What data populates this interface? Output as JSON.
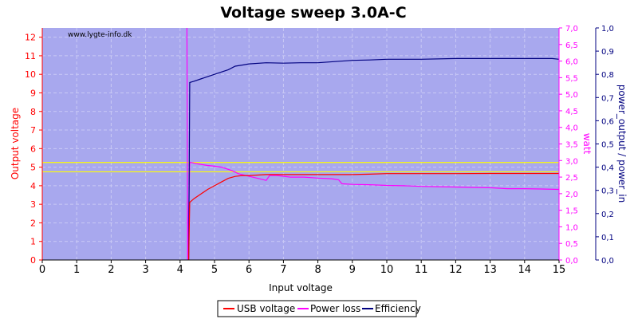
{
  "chart_data": {
    "type": "line",
    "title": "Voltage sweep 3.0A-C",
    "watermark": "www.lygte-info.dk",
    "xlabel": "Input voltage",
    "ylabel_left": "Output voltage",
    "ylabel_right1": "watt",
    "ylabel_right2": "power_output / power_in",
    "xlim": [
      0,
      15
    ],
    "ylim_left": [
      0,
      12.5
    ],
    "ylim_right1": [
      0,
      7.0
    ],
    "ylim_right2": [
      0,
      1.0
    ],
    "x_ticks": [
      "0",
      "1",
      "2",
      "3",
      "4",
      "5",
      "6",
      "7",
      "8",
      "9",
      "10",
      "11",
      "12",
      "13",
      "14",
      "15"
    ],
    "y_left_ticks": [
      "0",
      "1",
      "2",
      "3",
      "4",
      "5",
      "6",
      "7",
      "8",
      "9",
      "10",
      "11",
      "12"
    ],
    "y_right1_ticks": [
      "0,0",
      "0,5",
      "1,0",
      "1,5",
      "2,0",
      "2,5",
      "3,0",
      "3,5",
      "4,0",
      "4,5",
      "5,0",
      "5,5",
      "6,0",
      "6,5",
      "7,0"
    ],
    "y_right2_ticks": [
      "0,0",
      "0,1",
      "0,2",
      "0,3",
      "0,4",
      "0,5",
      "0,6",
      "0,7",
      "0,8",
      "0,9",
      "1,0"
    ],
    "reference_lines_left": [
      4.75,
      5.25
    ],
    "grid": true,
    "legend_position": "bottom-center",
    "colors": {
      "plot_bg": "#a8a8ee",
      "usb": "#ff0000",
      "loss": "#ff00ff",
      "eff": "#000080",
      "ref": "#ffff00",
      "left_axis": "#ff0000",
      "right1_axis": "#ff00ff",
      "right2_axis": "#000080"
    },
    "series": [
      {
        "name": "USB voltage",
        "axis": "left",
        "points": [
          [
            4.25,
            0
          ],
          [
            4.28,
            3.1
          ],
          [
            4.4,
            3.3
          ],
          [
            4.6,
            3.55
          ],
          [
            4.8,
            3.8
          ],
          [
            5.0,
            4.0
          ],
          [
            5.2,
            4.2
          ],
          [
            5.4,
            4.4
          ],
          [
            5.6,
            4.5
          ],
          [
            5.8,
            4.55
          ],
          [
            6.0,
            4.55
          ],
          [
            6.5,
            4.6
          ],
          [
            7,
            4.6
          ],
          [
            8,
            4.6
          ],
          [
            9,
            4.6
          ],
          [
            9.5,
            4.62
          ],
          [
            10,
            4.65
          ],
          [
            11,
            4.65
          ],
          [
            12,
            4.65
          ],
          [
            13,
            4.66
          ],
          [
            14,
            4.66
          ],
          [
            15,
            4.66
          ]
        ]
      },
      {
        "name": "Power loss",
        "axis": "right1",
        "points": [
          [
            4.2,
            7.0
          ],
          [
            4.22,
            0
          ],
          [
            4.28,
            2.95
          ],
          [
            4.5,
            2.9
          ],
          [
            4.8,
            2.85
          ],
          [
            5.0,
            2.83
          ],
          [
            5.2,
            2.8
          ],
          [
            5.5,
            2.7
          ],
          [
            5.7,
            2.6
          ],
          [
            5.9,
            2.55
          ],
          [
            6.1,
            2.5
          ],
          [
            6.3,
            2.45
          ],
          [
            6.5,
            2.4
          ],
          [
            6.6,
            2.55
          ],
          [
            6.8,
            2.55
          ],
          [
            7.2,
            2.5
          ],
          [
            7.6,
            2.5
          ],
          [
            8,
            2.47
          ],
          [
            8.4,
            2.45
          ],
          [
            8.6,
            2.42
          ],
          [
            8.7,
            2.3
          ],
          [
            9,
            2.28
          ],
          [
            9.5,
            2.27
          ],
          [
            10,
            2.25
          ],
          [
            10.5,
            2.24
          ],
          [
            11,
            2.22
          ],
          [
            11.5,
            2.21
          ],
          [
            12,
            2.2
          ],
          [
            12.5,
            2.19
          ],
          [
            13,
            2.18
          ],
          [
            13.5,
            2.15
          ],
          [
            14,
            2.15
          ],
          [
            14.5,
            2.14
          ],
          [
            15,
            2.13
          ]
        ]
      },
      {
        "name": "Efficiency",
        "axis": "right2",
        "points": [
          [
            4.25,
            0
          ],
          [
            4.28,
            0.765
          ],
          [
            4.4,
            0.77
          ],
          [
            4.6,
            0.78
          ],
          [
            4.8,
            0.79
          ],
          [
            5.0,
            0.8
          ],
          [
            5.2,
            0.81
          ],
          [
            5.4,
            0.82
          ],
          [
            5.6,
            0.835
          ],
          [
            5.8,
            0.84
          ],
          [
            6.0,
            0.845
          ],
          [
            6.5,
            0.85
          ],
          [
            7,
            0.848
          ],
          [
            7.5,
            0.85
          ],
          [
            8,
            0.85
          ],
          [
            8.5,
            0.855
          ],
          [
            9,
            0.86
          ],
          [
            9.5,
            0.862
          ],
          [
            10,
            0.865
          ],
          [
            11,
            0.865
          ],
          [
            12,
            0.868
          ],
          [
            13,
            0.868
          ],
          [
            14,
            0.868
          ],
          [
            14.8,
            0.868
          ],
          [
            15,
            0.865
          ]
        ]
      }
    ]
  }
}
